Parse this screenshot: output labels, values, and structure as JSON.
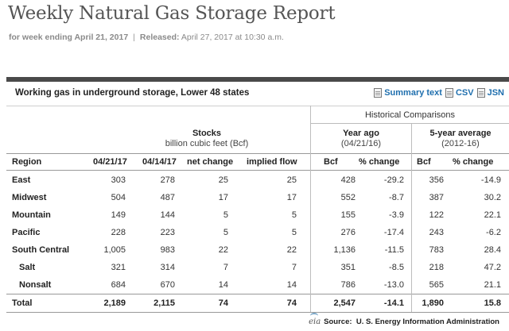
{
  "header": {
    "title": "Weekly Natural Gas Storage Report",
    "week_label": "for week ending April 21, 2017",
    "separator": "|",
    "released_label": "Released:",
    "released_value": "April 27, 2017 at 10:30 a.m."
  },
  "panel": {
    "title": "Working gas in underground storage, Lower 48 states",
    "links": [
      "Summary text",
      "CSV",
      "JSN"
    ]
  },
  "table": {
    "historical_header": "Historical Comparisons",
    "groups": {
      "stocks": {
        "main": "Stocks",
        "sub": "billion cubic feet (Bcf)"
      },
      "year_ago": {
        "main": "Year ago",
        "sub": "(04/21/16)"
      },
      "five_year": {
        "main": "5-year average",
        "sub": "(2012-16)"
      }
    },
    "columns": [
      "Region",
      "04/21/17",
      "04/14/17",
      "net change",
      "implied flow",
      "Bcf",
      "% change",
      "Bcf",
      "% change"
    ],
    "rows": [
      {
        "region": "East",
        "cur": "303",
        "prev": "278",
        "net": "25",
        "flow": "25",
        "ya_bcf": "428",
        "ya_pct": "-29.2",
        "fy_bcf": "356",
        "fy_pct": "-14.9"
      },
      {
        "region": "Midwest",
        "cur": "504",
        "prev": "487",
        "net": "17",
        "flow": "17",
        "ya_bcf": "552",
        "ya_pct": "-8.7",
        "fy_bcf": "387",
        "fy_pct": "30.2"
      },
      {
        "region": "Mountain",
        "cur": "149",
        "prev": "144",
        "net": "5",
        "flow": "5",
        "ya_bcf": "155",
        "ya_pct": "-3.9",
        "fy_bcf": "122",
        "fy_pct": "22.1"
      },
      {
        "region": "Pacific",
        "cur": "228",
        "prev": "223",
        "net": "5",
        "flow": "5",
        "ya_bcf": "276",
        "ya_pct": "-17.4",
        "fy_bcf": "243",
        "fy_pct": "-6.2"
      },
      {
        "region": "South Central",
        "cur": "1,005",
        "prev": "983",
        "net": "22",
        "flow": "22",
        "ya_bcf": "1,136",
        "ya_pct": "-11.5",
        "fy_bcf": "783",
        "fy_pct": "28.4"
      },
      {
        "region": "Salt",
        "cur": "321",
        "prev": "314",
        "net": "7",
        "flow": "7",
        "ya_bcf": "351",
        "ya_pct": "-8.5",
        "fy_bcf": "218",
        "fy_pct": "47.2"
      },
      {
        "region": "Nonsalt",
        "cur": "684",
        "prev": "670",
        "net": "14",
        "flow": "14",
        "ya_bcf": "786",
        "ya_pct": "-13.0",
        "fy_bcf": "565",
        "fy_pct": "21.1"
      },
      {
        "region": "Total",
        "cur": "2,189",
        "prev": "2,115",
        "net": "74",
        "flow": "74",
        "ya_bcf": "2,547",
        "ya_pct": "-14.1",
        "fy_bcf": "1,890",
        "fy_pct": "15.8"
      }
    ]
  },
  "footer": {
    "logo_text": "eia",
    "source_label": "Source:",
    "source_value": "U. S. Energy Information Administration"
  }
}
